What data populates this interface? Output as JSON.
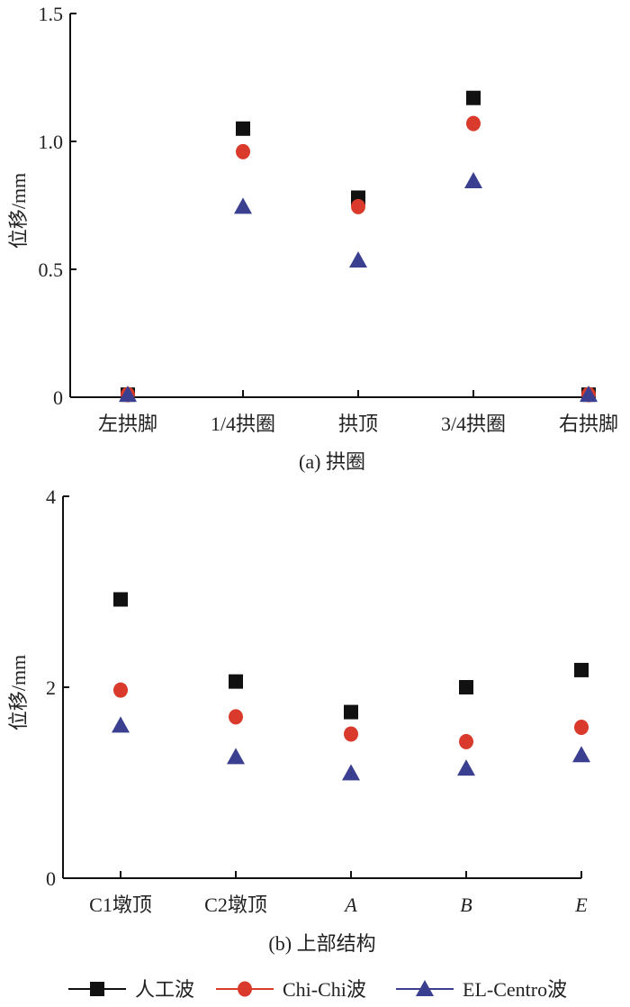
{
  "chart_data": [
    {
      "type": "scatter",
      "title": "(a) 拱圈",
      "ylabel": "位移/mm",
      "xlabel": "",
      "categories": [
        "左拱脚",
        "1/4拱圈",
        "拱顶",
        "3/4拱圈",
        "右拱脚"
      ],
      "ylim": [
        0,
        1.5
      ],
      "yticks": [
        "0",
        "0.5",
        "1.0",
        "1.5"
      ],
      "ytick_values": [
        0,
        0.5,
        1.0,
        1.5
      ],
      "grid": false,
      "series": [
        {
          "name": "人工波",
          "marker": "square",
          "color": "#111111",
          "values": [
            0.01,
            1.05,
            0.78,
            1.17,
            0.01
          ]
        },
        {
          "name": "Chi-Chi波",
          "marker": "circle",
          "color": "#d93a2b",
          "values": [
            0.01,
            0.96,
            0.745,
            1.07,
            0.01
          ]
        },
        {
          "name": "EL-Centro波",
          "marker": "triangle",
          "color": "#3a3f8f",
          "values": [
            0.01,
            0.745,
            0.535,
            0.845,
            0.01
          ]
        }
      ]
    },
    {
      "type": "scatter",
      "title": "(b) 上部结构",
      "ylabel": "位移/mm",
      "xlabel": "",
      "categories": [
        "C1墩顶",
        "C2墩顶",
        "A",
        "B",
        "E"
      ],
      "italic_categories": [
        false,
        false,
        true,
        true,
        true
      ],
      "ylim": [
        0,
        4
      ],
      "yticks": [
        "0",
        "2",
        "4"
      ],
      "ytick_values": [
        0,
        2,
        4
      ],
      "grid": false,
      "series": [
        {
          "name": "人工波",
          "marker": "square",
          "color": "#111111",
          "values": [
            2.92,
            2.06,
            1.74,
            2.0,
            2.18
          ]
        },
        {
          "name": "Chi-Chi波",
          "marker": "circle",
          "color": "#d93a2b",
          "values": [
            1.97,
            1.69,
            1.51,
            1.43,
            1.58
          ]
        },
        {
          "name": "EL-Centro波",
          "marker": "triangle",
          "color": "#3a3f8f",
          "values": [
            1.6,
            1.27,
            1.1,
            1.15,
            1.29
          ]
        }
      ]
    }
  ],
  "legend": {
    "placement": "bottom",
    "items": [
      {
        "label": "人工波",
        "marker": "square",
        "color": "#111111"
      },
      {
        "label": "Chi-Chi波",
        "marker": "circle",
        "color": "#d93a2b"
      },
      {
        "label": "EL-Centro波",
        "marker": "triangle",
        "color": "#3a3f8f"
      }
    ]
  }
}
